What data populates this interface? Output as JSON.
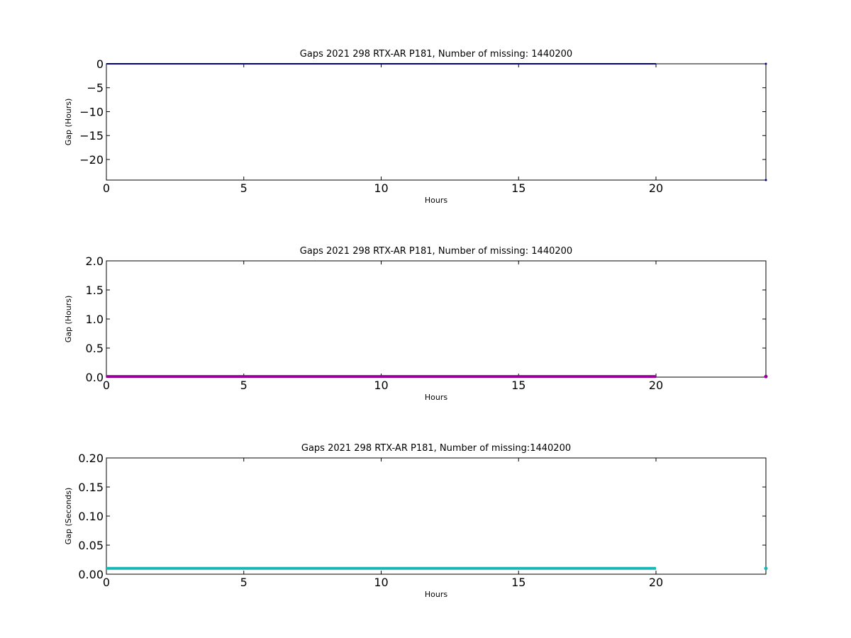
{
  "chart_data": [
    {
      "type": "line",
      "title": "Gaps 2021 298 RTX-AR  P181, Number of missing: 1440200",
      "xlabel": "Hours",
      "ylabel": "Gap (Hours)",
      "xlim": [
        0,
        24
      ],
      "ylim": [
        -24.3,
        0
      ],
      "xticks": [
        0,
        5,
        10,
        15,
        20
      ],
      "xtick_labels": [
        "0",
        "5",
        "10",
        "15",
        "20"
      ],
      "yticks": [
        0,
        -5,
        -10,
        -15,
        -20
      ],
      "ytick_labels": [
        "0",
        "−5",
        "−10",
        "−15",
        "−20"
      ],
      "grid": false,
      "color": "#000080",
      "series": [
        {
          "x": [
            0,
            20
          ],
          "y": [
            0,
            0
          ],
          "style": "line"
        },
        {
          "x": [
            24,
            24
          ],
          "y": [
            0,
            -24.3
          ],
          "style": "points"
        }
      ]
    },
    {
      "type": "line",
      "title": "Gaps 2021 298 RTX-AR  P181, Number of missing: 1440200",
      "xlabel": "Hours",
      "ylabel": "Gap (Hours)",
      "xlim": [
        0,
        24
      ],
      "ylim": [
        0,
        2
      ],
      "xticks": [
        0,
        5,
        10,
        15,
        20
      ],
      "xtick_labels": [
        "0",
        "5",
        "10",
        "15",
        "20"
      ],
      "yticks": [
        0,
        0.5,
        1,
        1.5,
        2
      ],
      "ytick_labels": [
        "0.0",
        "0.5",
        "1.0",
        "1.5",
        "2.0"
      ],
      "grid": false,
      "color": "#990099",
      "series": [
        {
          "x": [
            0,
            20
          ],
          "y": [
            0.01,
            0.01
          ],
          "style": "line"
        },
        {
          "x": [
            24
          ],
          "y": [
            0.01
          ],
          "style": "points"
        }
      ]
    },
    {
      "type": "line",
      "title": "Gaps 2021 298 RTX-AR  P181, Number of missing:1440200",
      "xlabel": "Hours",
      "ylabel": "Gap (Seconds)",
      "xlim": [
        0,
        24
      ],
      "ylim": [
        0,
        0.2
      ],
      "xticks": [
        0,
        5,
        10,
        15,
        20
      ],
      "xtick_labels": [
        "0",
        "5",
        "10",
        "15",
        "20"
      ],
      "yticks": [
        0,
        0.05,
        0.1,
        0.15,
        0.2
      ],
      "ytick_labels": [
        "0.00",
        "0.05",
        "0.10",
        "0.15",
        "0.20"
      ],
      "grid": false,
      "color": "#1ab5b5",
      "series": [
        {
          "x": [
            0,
            20
          ],
          "y": [
            0.01,
            0.01
          ],
          "style": "line"
        },
        {
          "x": [
            24
          ],
          "y": [
            0.01
          ],
          "style": "points"
        }
      ]
    }
  ]
}
